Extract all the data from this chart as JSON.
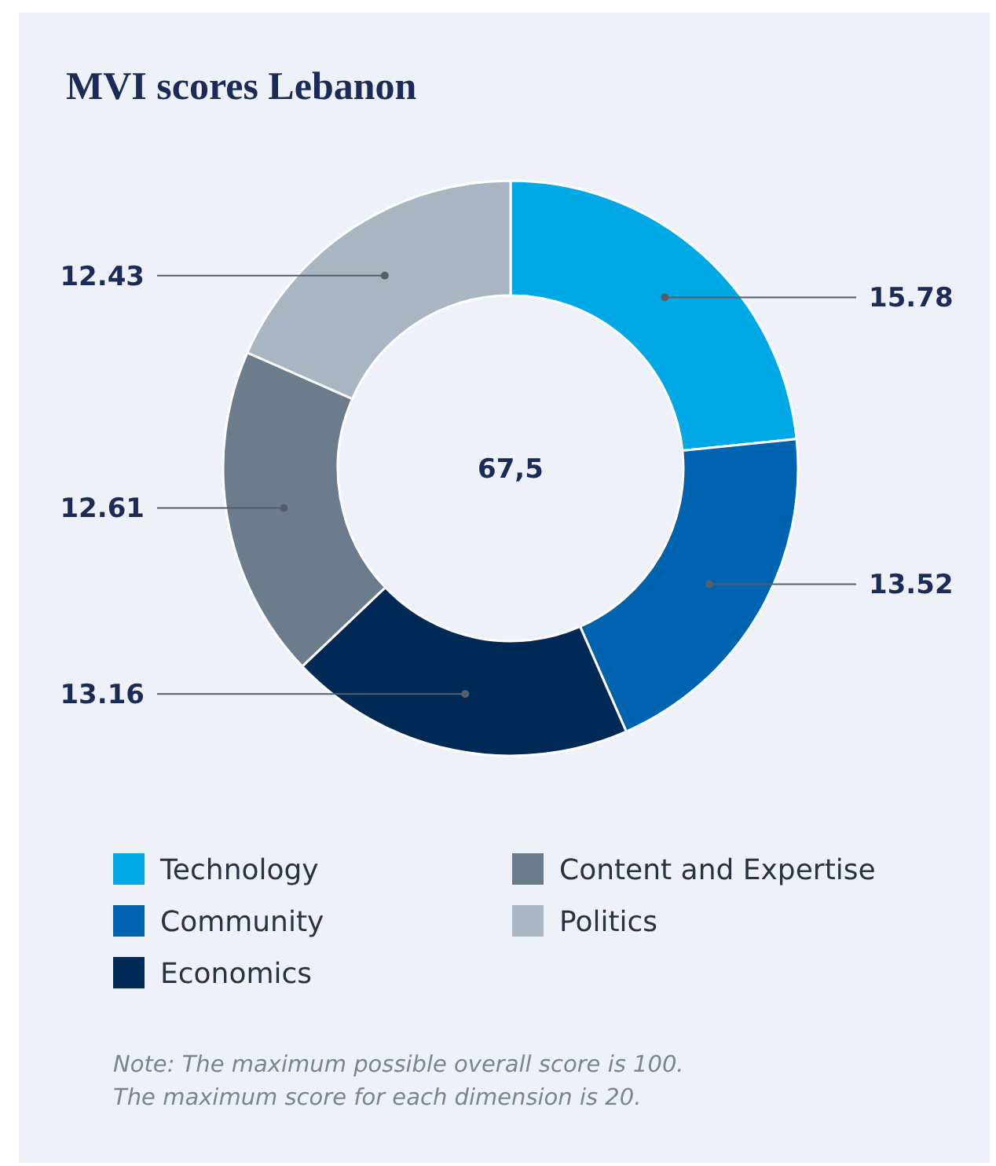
{
  "chart_data": {
    "type": "donut",
    "title": "MVI scores Lebanon",
    "categories": [
      "Technology",
      "Community",
      "Economics",
      "Content and Expertise",
      "Politics"
    ],
    "values": [
      15.78,
      13.52,
      13.16,
      12.61,
      12.43
    ],
    "colors": [
      "#00a9e6",
      "#0063b0",
      "#002a55",
      "#6b7d8c",
      "#a8b6c4"
    ],
    "data_labels": true,
    "legend": "bottom",
    "annotations": [
      "67,5",
      "Note: The maximum possible overall score is 100.",
      "The maximum score for each dimension is 20."
    ]
  }
}
